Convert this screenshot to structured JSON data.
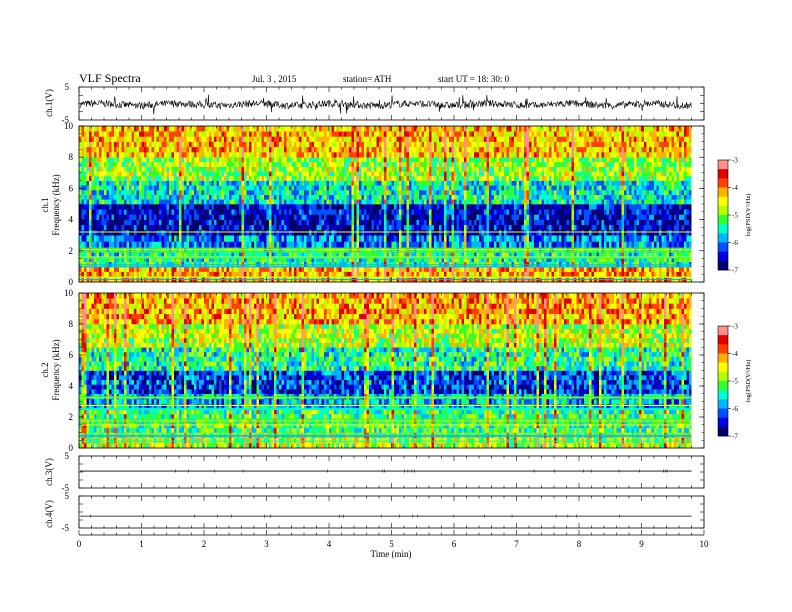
{
  "header": {
    "title": "VLF  Spectra",
    "date": "Jul.  3  , 2015",
    "station": "station= ATH",
    "start": "start  UT  =   18: 30: 0"
  },
  "colors": {
    "background": "#ffffff",
    "axis": "#000000",
    "colormap": [
      "#00006e",
      "#0000e0",
      "#0050ff",
      "#00b4ff",
      "#00ffc8",
      "#30ff30",
      "#b4ff00",
      "#ffff00",
      "#ffb000",
      "#ff4000",
      "#e00000",
      "#ff9090",
      "#ffffff"
    ]
  },
  "chart_data": [
    {
      "id": "ch1-waveform",
      "type": "line",
      "ylabel": "ch.1(V)",
      "ylim": [
        -5,
        5
      ],
      "yticks": [
        "5",
        "-5"
      ],
      "description_value": "noisy waveform centred near 0 V, amplitude about ±1 V with spikes to about ±3 V"
    },
    {
      "id": "ch1-spectrogram",
      "type": "heatmap",
      "ylabel": "ch.1\nFrequency  (kHz)",
      "ylabel_lines": [
        "ch.1",
        "Frequency  (kHz)"
      ],
      "ylim": [
        0,
        10
      ],
      "yticks": [
        "0",
        "2",
        "4",
        "6",
        "8",
        "10"
      ],
      "xlim": [
        0,
        9.8
      ],
      "colorbar": {
        "label": "log(PSD(V²/Hz)",
        "ticks": [
          "-3",
          "-4",
          "-5",
          "-6",
          "-7"
        ],
        "range": [
          -7,
          -3
        ]
      },
      "bands": [
        {
          "f_from": 0.0,
          "f_to": 1.0,
          "logpsd": -4.2
        },
        {
          "f_from": 1.0,
          "f_to": 2.2,
          "logpsd": -5.4
        },
        {
          "f_from": 2.2,
          "f_to": 3.0,
          "logpsd": -6.0
        },
        {
          "f_from": 3.0,
          "f_to": 5.0,
          "logpsd": -6.6
        },
        {
          "f_from": 5.0,
          "f_to": 6.5,
          "logpsd": -5.6
        },
        {
          "f_from": 6.5,
          "f_to": 8.0,
          "logpsd": -4.9
        },
        {
          "f_from": 8.0,
          "f_to": 10.0,
          "logpsd": -4.3
        }
      ]
    },
    {
      "id": "ch2-spectrogram",
      "type": "heatmap",
      "ylabel": "ch.2\nFrequency  (kHz)",
      "ylabel_lines": [
        "ch.2",
        "Frequency  (kHz)"
      ],
      "ylim": [
        0,
        10
      ],
      "yticks": [
        "0",
        "2",
        "4",
        "6",
        "8",
        "10"
      ],
      "xlim": [
        0,
        9.8
      ],
      "colorbar": {
        "label": "log(PSD(V²/Hz)",
        "ticks": [
          "-3",
          "-4",
          "-5",
          "-6",
          "-7"
        ],
        "range": [
          -7,
          -3
        ]
      },
      "bands": [
        {
          "f_from": 0.0,
          "f_to": 1.0,
          "logpsd": -4.8
        },
        {
          "f_from": 1.0,
          "f_to": 2.5,
          "logpsd": -5.3
        },
        {
          "f_from": 2.5,
          "f_to": 3.5,
          "logpsd": -5.8
        },
        {
          "f_from": 3.5,
          "f_to": 5.0,
          "logpsd": -6.3
        },
        {
          "f_from": 5.0,
          "f_to": 6.5,
          "logpsd": -5.4
        },
        {
          "f_from": 6.5,
          "f_to": 8.0,
          "logpsd": -4.8
        },
        {
          "f_from": 8.0,
          "f_to": 10.0,
          "logpsd": -4.2
        }
      ]
    },
    {
      "id": "ch3-waveform",
      "type": "line",
      "ylabel": "ch.3(V)",
      "ylim": [
        -5,
        5
      ],
      "yticks": [
        "5",
        "-5"
      ],
      "description_value": "flat trace near 0 V"
    },
    {
      "id": "ch4-waveform",
      "type": "line",
      "ylabel": "ch.4(V)",
      "ylim": [
        -5,
        5
      ],
      "yticks": [
        "5",
        "-5"
      ],
      "description_value": "flat trace near -1 V"
    }
  ],
  "xaxis": {
    "label": "Time  (min)",
    "ticks": [
      "0",
      "1",
      "2",
      "3",
      "4",
      "5",
      "6",
      "7",
      "8",
      "9",
      "10"
    ],
    "xlim": [
      0,
      10
    ],
    "data_end": 9.8
  }
}
